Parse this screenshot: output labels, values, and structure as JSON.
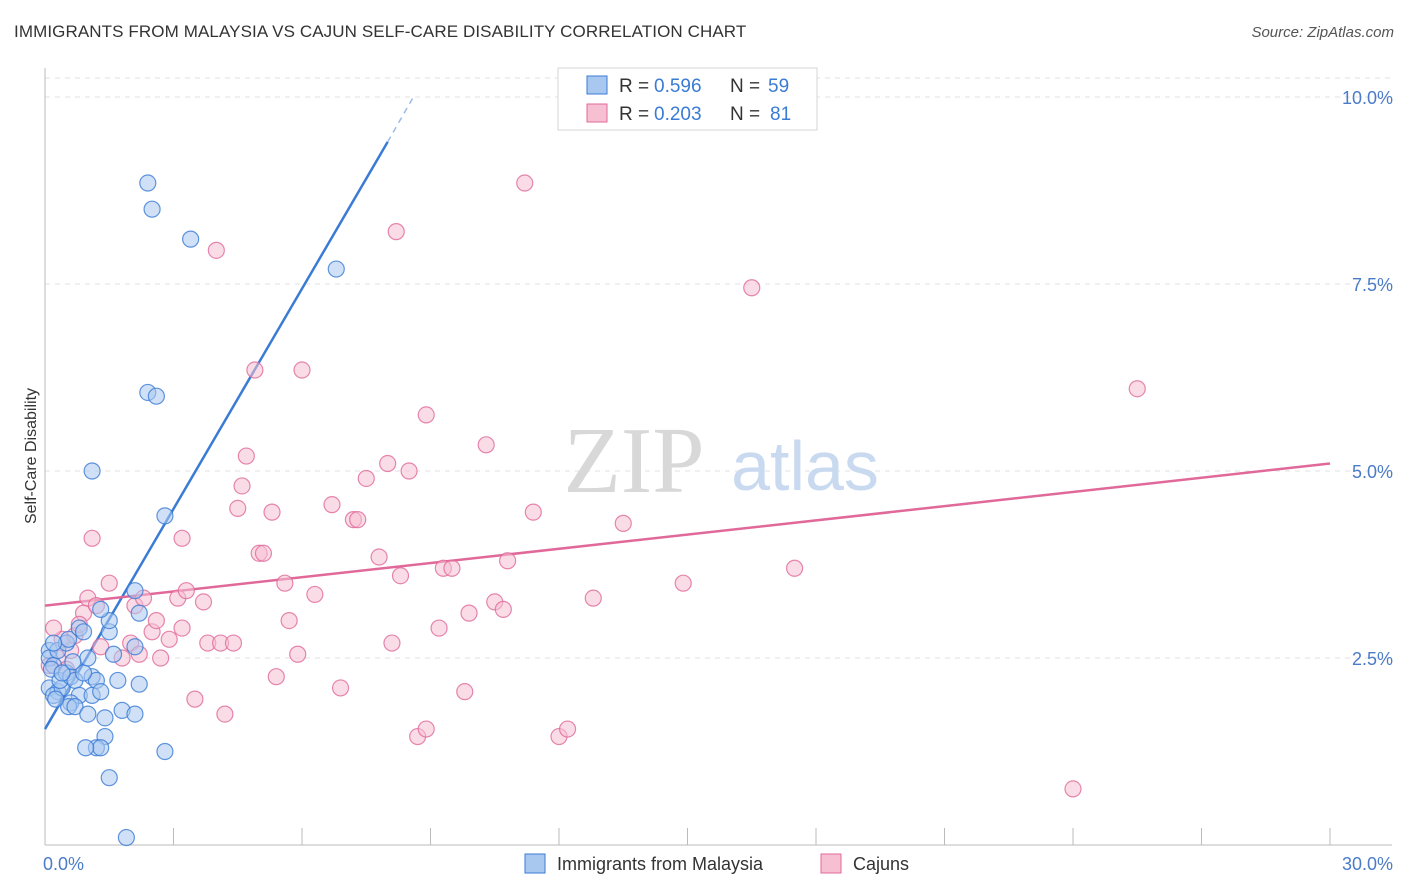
{
  "header": {
    "title": "IMMIGRANTS FROM MALAYSIA VS CAJUN SELF-CARE DISABILITY CORRELATION CHART",
    "source": "Source: ZipAtlas.com"
  },
  "watermark": {
    "zip": "ZIP",
    "atlas": "atlas"
  },
  "colors": {
    "blue": "#3a7bd5",
    "blue_fill": "#a9c8f0",
    "pink": "#e0699a",
    "pink_fill": "#f6bfd2",
    "tick_label": "#4a7cc7"
  },
  "chart_data": {
    "type": "scatter",
    "title": "IMMIGRANTS FROM MALAYSIA VS CAJUN SELF-CARE DISABILITY CORRELATION CHART",
    "xlabel": "",
    "ylabel": "Self-Care Disability",
    "xlim": [
      0,
      30
    ],
    "ylim": [
      0,
      10.5
    ],
    "x_tick_labels": [
      {
        "v": 0,
        "label": "0.0%"
      },
      {
        "v": 30,
        "label": "30.0%"
      }
    ],
    "y_tick_labels": [
      {
        "v": 2.5,
        "label": "2.5%"
      },
      {
        "v": 5,
        "label": "5.0%"
      },
      {
        "v": 7.5,
        "label": "7.5%"
      },
      {
        "v": 10,
        "label": "10.0%"
      }
    ],
    "grid": true,
    "legend_position": "top-center",
    "legend": [
      {
        "r_label": "R =",
        "r_value": "0.596",
        "n_label": "N =",
        "n_value": "59"
      },
      {
        "r_label": "R =",
        "r_value": "0.203",
        "n_label": "N =",
        "n_value": "81"
      }
    ],
    "series": [
      {
        "name": "Immigrants from Malaysia",
        "color": "#3a7bd5",
        "trend": {
          "x0": 0,
          "y0": 1.55,
          "x1": 8.0,
          "y1": 9.4,
          "dash_to_x": 8.6,
          "dash_to_y": 10.0
        },
        "points": [
          [
            0.1,
            2.6
          ],
          [
            0.1,
            2.5
          ],
          [
            0.2,
            2.4
          ],
          [
            0.15,
            2.35
          ],
          [
            0.1,
            2.1
          ],
          [
            0.3,
            2.05
          ],
          [
            0.2,
            2.0
          ],
          [
            0.4,
            2.1
          ],
          [
            0.35,
            2.2
          ],
          [
            0.5,
            2.3
          ],
          [
            0.6,
            2.25
          ],
          [
            0.3,
            2.6
          ],
          [
            0.5,
            2.7
          ],
          [
            0.55,
            2.75
          ],
          [
            0.8,
            2.9
          ],
          [
            0.9,
            2.85
          ],
          [
            0.7,
            2.2
          ],
          [
            0.8,
            2.0
          ],
          [
            0.6,
            1.9
          ],
          [
            0.55,
            1.85
          ],
          [
            0.7,
            1.85
          ],
          [
            1.0,
            1.75
          ],
          [
            1.1,
            2.0
          ],
          [
            1.1,
            2.25
          ],
          [
            1.2,
            2.2
          ],
          [
            0.9,
            2.3
          ],
          [
            1.0,
            2.5
          ],
          [
            1.3,
            2.05
          ],
          [
            1.4,
            1.7
          ],
          [
            1.4,
            1.45
          ],
          [
            1.2,
            1.3
          ],
          [
            1.3,
            1.3
          ],
          [
            0.95,
            1.3
          ],
          [
            1.5,
            2.85
          ],
          [
            1.5,
            3.0
          ],
          [
            1.3,
            3.15
          ],
          [
            1.6,
            2.55
          ],
          [
            1.7,
            2.2
          ],
          [
            1.8,
            1.8
          ],
          [
            2.1,
            2.65
          ],
          [
            2.2,
            3.1
          ],
          [
            2.1,
            3.4
          ],
          [
            2.2,
            2.15
          ],
          [
            2.1,
            1.75
          ],
          [
            2.8,
            1.25
          ],
          [
            1.5,
            0.9
          ],
          [
            1.9,
            0.1
          ],
          [
            1.1,
            5.0
          ],
          [
            2.8,
            4.4
          ],
          [
            2.4,
            6.05
          ],
          [
            2.6,
            6.0
          ],
          [
            3.4,
            8.1
          ],
          [
            2.4,
            8.85
          ],
          [
            2.5,
            8.5
          ],
          [
            6.8,
            7.7
          ],
          [
            0.2,
            2.7
          ],
          [
            0.4,
            2.3
          ],
          [
            0.25,
            1.95
          ],
          [
            0.65,
            2.45
          ]
        ]
      },
      {
        "name": "Cajuns",
        "color": "#e0699a",
        "trend": {
          "x0": 0,
          "y0": 3.2,
          "x1": 30,
          "y1": 5.1
        },
        "points": [
          [
            0.1,
            2.4
          ],
          [
            0.3,
            2.5
          ],
          [
            0.4,
            2.75
          ],
          [
            0.6,
            2.6
          ],
          [
            0.7,
            2.8
          ],
          [
            0.9,
            3.1
          ],
          [
            1.0,
            3.3
          ],
          [
            1.2,
            3.2
          ],
          [
            1.3,
            2.65
          ],
          [
            1.5,
            3.5
          ],
          [
            1.8,
            2.5
          ],
          [
            2.0,
            2.7
          ],
          [
            2.1,
            3.2
          ],
          [
            2.2,
            2.55
          ],
          [
            2.3,
            3.3
          ],
          [
            2.5,
            2.85
          ],
          [
            2.6,
            3.0
          ],
          [
            2.7,
            2.5
          ],
          [
            2.9,
            2.75
          ],
          [
            3.1,
            3.3
          ],
          [
            3.2,
            2.9
          ],
          [
            3.3,
            3.4
          ],
          [
            3.2,
            4.1
          ],
          [
            3.5,
            1.95
          ],
          [
            3.7,
            3.25
          ],
          [
            3.8,
            2.7
          ],
          [
            4.0,
            7.95
          ],
          [
            4.1,
            2.7
          ],
          [
            4.2,
            1.75
          ],
          [
            4.4,
            2.7
          ],
          [
            4.5,
            4.5
          ],
          [
            4.6,
            4.8
          ],
          [
            4.7,
            5.2
          ],
          [
            4.9,
            6.35
          ],
          [
            5.0,
            3.9
          ],
          [
            5.1,
            3.9
          ],
          [
            5.3,
            4.45
          ],
          [
            5.4,
            2.25
          ],
          [
            5.6,
            3.5
          ],
          [
            5.7,
            3.0
          ],
          [
            5.9,
            2.55
          ],
          [
            6.0,
            6.35
          ],
          [
            6.3,
            3.35
          ],
          [
            6.7,
            4.55
          ],
          [
            6.9,
            2.1
          ],
          [
            7.2,
            4.35
          ],
          [
            7.3,
            4.35
          ],
          [
            7.5,
            4.9
          ],
          [
            7.8,
            3.85
          ],
          [
            8.0,
            5.1
          ],
          [
            8.1,
            2.7
          ],
          [
            8.2,
            8.2
          ],
          [
            8.3,
            3.6
          ],
          [
            8.5,
            5.0
          ],
          [
            8.7,
            1.45
          ],
          [
            8.9,
            5.75
          ],
          [
            8.9,
            1.55
          ],
          [
            9.2,
            2.9
          ],
          [
            9.3,
            3.7
          ],
          [
            9.5,
            3.7
          ],
          [
            9.8,
            2.05
          ],
          [
            9.9,
            3.1
          ],
          [
            10.3,
            5.35
          ],
          [
            10.5,
            3.25
          ],
          [
            10.7,
            3.15
          ],
          [
            10.8,
            3.8
          ],
          [
            11.2,
            8.85
          ],
          [
            11.4,
            4.45
          ],
          [
            12.0,
            1.45
          ],
          [
            12.2,
            1.55
          ],
          [
            12.8,
            3.3
          ],
          [
            13.5,
            4.3
          ],
          [
            14.9,
            3.5
          ],
          [
            16.5,
            7.45
          ],
          [
            17.5,
            3.7
          ],
          [
            24.0,
            0.75
          ],
          [
            25.5,
            6.1
          ],
          [
            0.2,
            2.9
          ],
          [
            0.5,
            2.35
          ],
          [
            0.8,
            2.95
          ],
          [
            1.1,
            4.1
          ]
        ]
      }
    ]
  },
  "bottom_legend": {
    "series_a": "Immigrants from Malaysia",
    "series_b": "Cajuns"
  }
}
